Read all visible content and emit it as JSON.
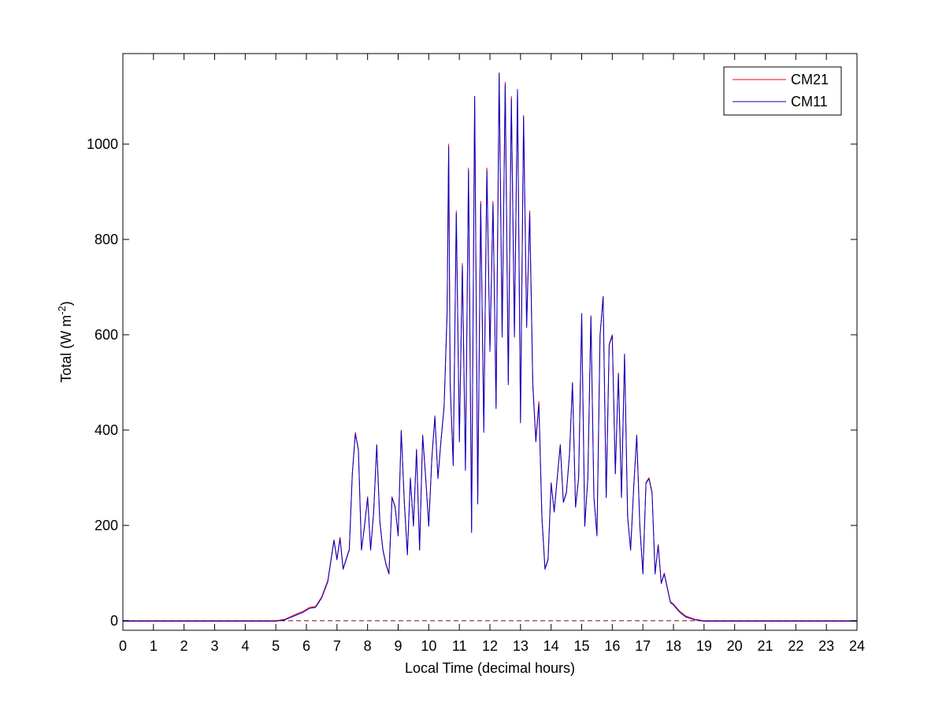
{
  "colors": {
    "background": "#ffffff",
    "axes": "#000000",
    "cm21": "#ff0000",
    "cm11": "#0000cc",
    "zero_line": "#8b0000"
  },
  "chart_data": {
    "type": "line",
    "xlabel": "Local Time (decimal hours)",
    "ylabel": "Total (W m",
    "ylabel_sup": "-2",
    "ylabel_close": ")",
    "xlim": [
      0,
      24
    ],
    "ylim": [
      -20,
      1190
    ],
    "xticks": [
      "0",
      "1",
      "2",
      "3",
      "4",
      "5",
      "6",
      "7",
      "8",
      "9",
      "10",
      "11",
      "12",
      "13",
      "14",
      "15",
      "16",
      "17",
      "18",
      "19",
      "20",
      "21",
      "22",
      "23",
      "24"
    ],
    "yticks": [
      "0",
      "200",
      "400",
      "600",
      "800",
      "1000"
    ],
    "grid": false,
    "legend_position": "top-right",
    "reference_line": {
      "y": 0,
      "style": "dashed"
    },
    "series": [
      {
        "name": "CM21",
        "color": "#ff0000",
        "points": [
          [
            0,
            0
          ],
          [
            1,
            0
          ],
          [
            2,
            0
          ],
          [
            3,
            0
          ],
          [
            4,
            0
          ],
          [
            5,
            0
          ],
          [
            5.3,
            3
          ],
          [
            5.6,
            12
          ],
          [
            5.9,
            20
          ],
          [
            6.1,
            28
          ],
          [
            6.3,
            30
          ],
          [
            6.5,
            50
          ],
          [
            6.7,
            85
          ],
          [
            6.9,
            170
          ],
          [
            7.0,
            130
          ],
          [
            7.1,
            175
          ],
          [
            7.2,
            110
          ],
          [
            7.4,
            150
          ],
          [
            7.5,
            310
          ],
          [
            7.6,
            395
          ],
          [
            7.7,
            360
          ],
          [
            7.8,
            150
          ],
          [
            7.9,
            200
          ],
          [
            8.0,
            260
          ],
          [
            8.1,
            150
          ],
          [
            8.2,
            230
          ],
          [
            8.3,
            370
          ],
          [
            8.4,
            210
          ],
          [
            8.5,
            150
          ],
          [
            8.6,
            120
          ],
          [
            8.7,
            100
          ],
          [
            8.8,
            260
          ],
          [
            8.9,
            240
          ],
          [
            9.0,
            180
          ],
          [
            9.1,
            400
          ],
          [
            9.2,
            250
          ],
          [
            9.3,
            140
          ],
          [
            9.4,
            300
          ],
          [
            9.5,
            200
          ],
          [
            9.6,
            360
          ],
          [
            9.7,
            150
          ],
          [
            9.8,
            390
          ],
          [
            9.9,
            300
          ],
          [
            10.0,
            200
          ],
          [
            10.1,
            340
          ],
          [
            10.2,
            430
          ],
          [
            10.3,
            300
          ],
          [
            10.4,
            380
          ],
          [
            10.5,
            450
          ],
          [
            10.6,
            650
          ],
          [
            10.65,
            1000
          ],
          [
            10.7,
            500
          ],
          [
            10.8,
            330
          ],
          [
            10.9,
            860
          ],
          [
            11.0,
            380
          ],
          [
            11.1,
            750
          ],
          [
            11.2,
            320
          ],
          [
            11.3,
            950
          ],
          [
            11.4,
            190
          ],
          [
            11.5,
            1100
          ],
          [
            11.6,
            250
          ],
          [
            11.7,
            880
          ],
          [
            11.8,
            400
          ],
          [
            11.9,
            950
          ],
          [
            12.0,
            570
          ],
          [
            12.1,
            880
          ],
          [
            12.2,
            450
          ],
          [
            12.3,
            1150
          ],
          [
            12.4,
            600
          ],
          [
            12.5,
            1130
          ],
          [
            12.6,
            500
          ],
          [
            12.7,
            1100
          ],
          [
            12.8,
            600
          ],
          [
            12.9,
            1110
          ],
          [
            13.0,
            420
          ],
          [
            13.1,
            1060
          ],
          [
            13.2,
            620
          ],
          [
            13.3,
            860
          ],
          [
            13.4,
            500
          ],
          [
            13.5,
            380
          ],
          [
            13.6,
            460
          ],
          [
            13.7,
            220
          ],
          [
            13.8,
            110
          ],
          [
            13.9,
            130
          ],
          [
            14.0,
            290
          ],
          [
            14.1,
            230
          ],
          [
            14.2,
            300
          ],
          [
            14.3,
            370
          ],
          [
            14.4,
            250
          ],
          [
            14.5,
            270
          ],
          [
            14.6,
            350
          ],
          [
            14.7,
            500
          ],
          [
            14.8,
            240
          ],
          [
            14.9,
            300
          ],
          [
            15.0,
            640
          ],
          [
            15.1,
            200
          ],
          [
            15.2,
            300
          ],
          [
            15.3,
            640
          ],
          [
            15.4,
            260
          ],
          [
            15.5,
            180
          ],
          [
            15.6,
            600
          ],
          [
            15.7,
            680
          ],
          [
            15.8,
            260
          ],
          [
            15.9,
            580
          ],
          [
            16.0,
            600
          ],
          [
            16.1,
            310
          ],
          [
            16.2,
            520
          ],
          [
            16.3,
            260
          ],
          [
            16.4,
            560
          ],
          [
            16.5,
            220
          ],
          [
            16.6,
            150
          ],
          [
            16.7,
            280
          ],
          [
            16.8,
            390
          ],
          [
            16.9,
            200
          ],
          [
            17.0,
            100
          ],
          [
            17.1,
            290
          ],
          [
            17.2,
            300
          ],
          [
            17.3,
            270
          ],
          [
            17.4,
            100
          ],
          [
            17.5,
            160
          ],
          [
            17.6,
            80
          ],
          [
            17.7,
            100
          ],
          [
            17.8,
            70
          ],
          [
            17.9,
            40
          ],
          [
            18.0,
            35
          ],
          [
            18.2,
            20
          ],
          [
            18.4,
            10
          ],
          [
            18.7,
            3
          ],
          [
            19,
            0
          ],
          [
            20,
            0
          ],
          [
            21,
            0
          ],
          [
            22,
            0
          ],
          [
            23,
            0
          ],
          [
            24,
            0
          ]
        ]
      },
      {
        "name": "CM11",
        "color": "#0000cc",
        "points": [
          [
            0,
            -1
          ],
          [
            1,
            -1
          ],
          [
            2,
            -1
          ],
          [
            3,
            -1
          ],
          [
            4,
            -1
          ],
          [
            5,
            -1
          ],
          [
            5.3,
            2
          ],
          [
            5.6,
            10
          ],
          [
            5.9,
            18
          ],
          [
            6.1,
            26
          ],
          [
            6.3,
            28
          ],
          [
            6.5,
            48
          ],
          [
            6.7,
            82
          ],
          [
            6.9,
            168
          ],
          [
            7.0,
            128
          ],
          [
            7.1,
            172
          ],
          [
            7.2,
            108
          ],
          [
            7.4,
            148
          ],
          [
            7.5,
            308
          ],
          [
            7.6,
            392
          ],
          [
            7.7,
            358
          ],
          [
            7.8,
            148
          ],
          [
            7.9,
            198
          ],
          [
            8.0,
            258
          ],
          [
            8.1,
            148
          ],
          [
            8.2,
            228
          ],
          [
            8.3,
            368
          ],
          [
            8.4,
            208
          ],
          [
            8.5,
            148
          ],
          [
            8.6,
            118
          ],
          [
            8.7,
            98
          ],
          [
            8.8,
            258
          ],
          [
            8.9,
            238
          ],
          [
            9.0,
            178
          ],
          [
            9.1,
            398
          ],
          [
            9.2,
            248
          ],
          [
            9.3,
            138
          ],
          [
            9.4,
            298
          ],
          [
            9.5,
            198
          ],
          [
            9.6,
            358
          ],
          [
            9.7,
            148
          ],
          [
            9.8,
            388
          ],
          [
            9.9,
            298
          ],
          [
            10.0,
            198
          ],
          [
            10.1,
            338
          ],
          [
            10.2,
            428
          ],
          [
            10.3,
            298
          ],
          [
            10.4,
            378
          ],
          [
            10.5,
            448
          ],
          [
            10.6,
            640
          ],
          [
            10.65,
            995
          ],
          [
            10.7,
            495
          ],
          [
            10.8,
            325
          ],
          [
            10.9,
            855
          ],
          [
            11.0,
            375
          ],
          [
            11.1,
            745
          ],
          [
            11.2,
            315
          ],
          [
            11.3,
            945
          ],
          [
            11.4,
            185
          ],
          [
            11.5,
            1100
          ],
          [
            11.6,
            245
          ],
          [
            11.7,
            875
          ],
          [
            11.8,
            395
          ],
          [
            11.9,
            945
          ],
          [
            12.0,
            565
          ],
          [
            12.1,
            875
          ],
          [
            12.2,
            445
          ],
          [
            12.3,
            1148
          ],
          [
            12.4,
            595
          ],
          [
            12.5,
            1125
          ],
          [
            12.6,
            495
          ],
          [
            12.7,
            1095
          ],
          [
            12.8,
            595
          ],
          [
            12.9,
            1115
          ],
          [
            13.0,
            415
          ],
          [
            13.1,
            1058
          ],
          [
            13.2,
            615
          ],
          [
            13.3,
            855
          ],
          [
            13.4,
            495
          ],
          [
            13.5,
            375
          ],
          [
            13.6,
            455
          ],
          [
            13.7,
            215
          ],
          [
            13.8,
            108
          ],
          [
            13.9,
            128
          ],
          [
            14.0,
            288
          ],
          [
            14.1,
            228
          ],
          [
            14.2,
            298
          ],
          [
            14.3,
            368
          ],
          [
            14.4,
            248
          ],
          [
            14.5,
            268
          ],
          [
            14.6,
            348
          ],
          [
            14.7,
            498
          ],
          [
            14.8,
            238
          ],
          [
            14.9,
            298
          ],
          [
            15.0,
            645
          ],
          [
            15.1,
            198
          ],
          [
            15.2,
            298
          ],
          [
            15.3,
            638
          ],
          [
            15.4,
            258
          ],
          [
            15.5,
            178
          ],
          [
            15.6,
            598
          ],
          [
            15.7,
            680
          ],
          [
            15.8,
            258
          ],
          [
            15.9,
            578
          ],
          [
            16.0,
            598
          ],
          [
            16.1,
            308
          ],
          [
            16.2,
            518
          ],
          [
            16.3,
            258
          ],
          [
            16.4,
            558
          ],
          [
            16.5,
            218
          ],
          [
            16.6,
            148
          ],
          [
            16.7,
            278
          ],
          [
            16.8,
            388
          ],
          [
            16.9,
            198
          ],
          [
            17.0,
            98
          ],
          [
            17.1,
            288
          ],
          [
            17.2,
            298
          ],
          [
            17.3,
            268
          ],
          [
            17.4,
            98
          ],
          [
            17.5,
            158
          ],
          [
            17.6,
            78
          ],
          [
            17.7,
            98
          ],
          [
            17.8,
            68
          ],
          [
            17.9,
            38
          ],
          [
            18.0,
            33
          ],
          [
            18.2,
            18
          ],
          [
            18.4,
            8
          ],
          [
            18.7,
            2
          ],
          [
            19,
            -1
          ],
          [
            20,
            -1
          ],
          [
            21,
            -1
          ],
          [
            22,
            -1
          ],
          [
            23,
            -1
          ],
          [
            24,
            -1
          ]
        ]
      }
    ]
  }
}
